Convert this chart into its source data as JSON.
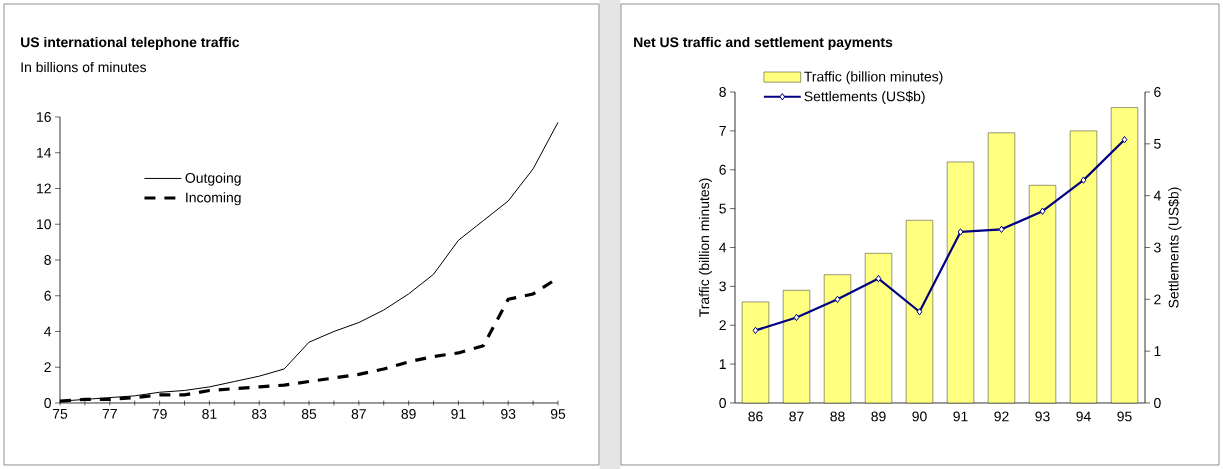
{
  "chart_data": [
    {
      "type": "line",
      "title": "US international telephone traffic",
      "subtitle": "In billions of minutes",
      "x": [
        75,
        76,
        77,
        78,
        79,
        80,
        81,
        82,
        83,
        84,
        85,
        86,
        87,
        88,
        89,
        90,
        91,
        92,
        93,
        94,
        95
      ],
      "series": [
        {
          "name": "Outgoing",
          "color": "#000000",
          "line_style": "solid",
          "values": [
            0.1,
            0.2,
            0.3,
            0.4,
            0.6,
            0.7,
            0.9,
            1.2,
            1.5,
            1.9,
            3.4,
            4.0,
            4.5,
            5.2,
            6.1,
            7.2,
            9.1,
            10.2,
            11.3,
            13.1,
            15.7
          ]
        },
        {
          "name": "Incoming",
          "color": "#000000",
          "line_style": "dashed",
          "values": [
            0.1,
            0.2,
            0.2,
            0.3,
            0.45,
            0.45,
            0.7,
            0.8,
            0.9,
            1.0,
            1.2,
            1.4,
            1.6,
            1.9,
            2.3,
            2.6,
            2.8,
            3.2,
            5.8,
            6.1,
            7.0
          ]
        }
      ],
      "xlim": [
        75,
        95
      ],
      "xticks": [
        75,
        {
          "value": 76,
          "label": null
        },
        77,
        {
          "value": 78,
          "label": null
        },
        79,
        {
          "value": 80,
          "label": null
        },
        81,
        {
          "value": 82,
          "label": null
        },
        83,
        {
          "value": 84,
          "label": null
        },
        85,
        {
          "value": 86,
          "label": null
        },
        87,
        {
          "value": 88,
          "label": null
        },
        89,
        {
          "value": 90,
          "label": null
        },
        91,
        {
          "value": 92,
          "label": null
        },
        93,
        {
          "value": 94,
          "label": null
        },
        95
      ],
      "ylim": [
        0,
        16
      ],
      "yticks": [
        0,
        2,
        4,
        6,
        8,
        10,
        12,
        14,
        16
      ],
      "legend": "top left"
    },
    {
      "type": "bar",
      "title": "Net US traffic and settlement payments",
      "categories": [
        "86",
        "87",
        "88",
        "89",
        "90",
        "91",
        "92",
        "93",
        "94",
        "95"
      ],
      "series": [
        {
          "name": "Traffic (billion minutes)",
          "color": "#ffff80",
          "values": [
            2.6,
            2.9,
            3.3,
            3.85,
            4.7,
            6.2,
            6.95,
            5.6,
            7.0,
            7.6
          ]
        },
        {
          "name": "Settlements (US$b)",
          "type": "line",
          "axis": "y2",
          "color": "#000080",
          "marker": "diamond",
          "values": [
            1.4,
            1.65,
            2.0,
            2.4,
            1.76,
            3.3,
            3.35,
            3.7,
            4.3,
            5.08
          ]
        }
      ],
      "ylabel": "Traffic (billion minutes)",
      "y2label": "Settlements (US$b)",
      "ylim": [
        0,
        8
      ],
      "yticks": [
        0,
        1,
        2,
        3,
        4,
        5,
        6,
        7,
        8
      ],
      "y2lim": [
        0,
        6
      ],
      "y2ticks": [
        0,
        1,
        2,
        3,
        4,
        5,
        6
      ],
      "legend": "top left"
    }
  ]
}
